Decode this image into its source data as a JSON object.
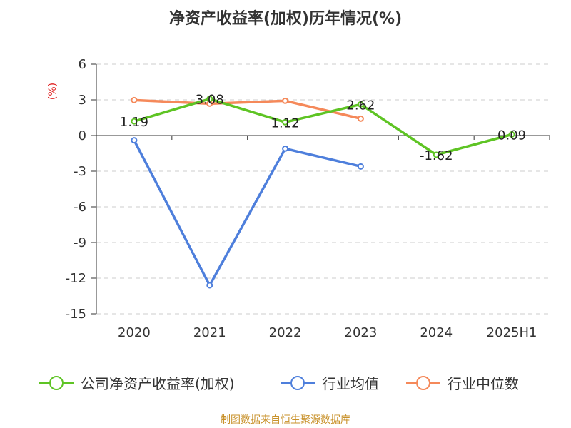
{
  "title": "净资产收益率(加权)历年情况(%)",
  "source": "制图数据来自恒生聚源数据库",
  "colors": {
    "company": "#5ec424",
    "industry_avg": "#4e7fdc",
    "industry_median": "#f5895a",
    "grid": "#cccccc",
    "axis": "#333333"
  },
  "chart_data": {
    "type": "line",
    "y_unit_label": "(%)",
    "categories": [
      "2020",
      "2021",
      "2022",
      "2023",
      "2024",
      "2025H1"
    ],
    "yticks": [
      6,
      3,
      0,
      -3,
      -6,
      -9,
      -12,
      -15
    ],
    "ylim": [
      -15,
      6
    ],
    "grid": true,
    "legend_position": "bottom",
    "series": [
      {
        "name": "公司净资产收益率(加权)",
        "color_key": "company",
        "values": [
          1.19,
          3.08,
          1.12,
          2.62,
          -1.62,
          0.09
        ],
        "labels": [
          "1.19",
          "3.08",
          "1.12",
          "2.62",
          "-1.62",
          "0.09"
        ]
      },
      {
        "name": "行业均值",
        "color_key": "industry_avg",
        "values": [
          -0.4,
          -12.6,
          -1.1,
          -2.6,
          null,
          null
        ]
      },
      {
        "name": "行业中位数",
        "color_key": "industry_median",
        "values": [
          2.98,
          2.68,
          2.92,
          1.42,
          null,
          null
        ]
      }
    ]
  }
}
